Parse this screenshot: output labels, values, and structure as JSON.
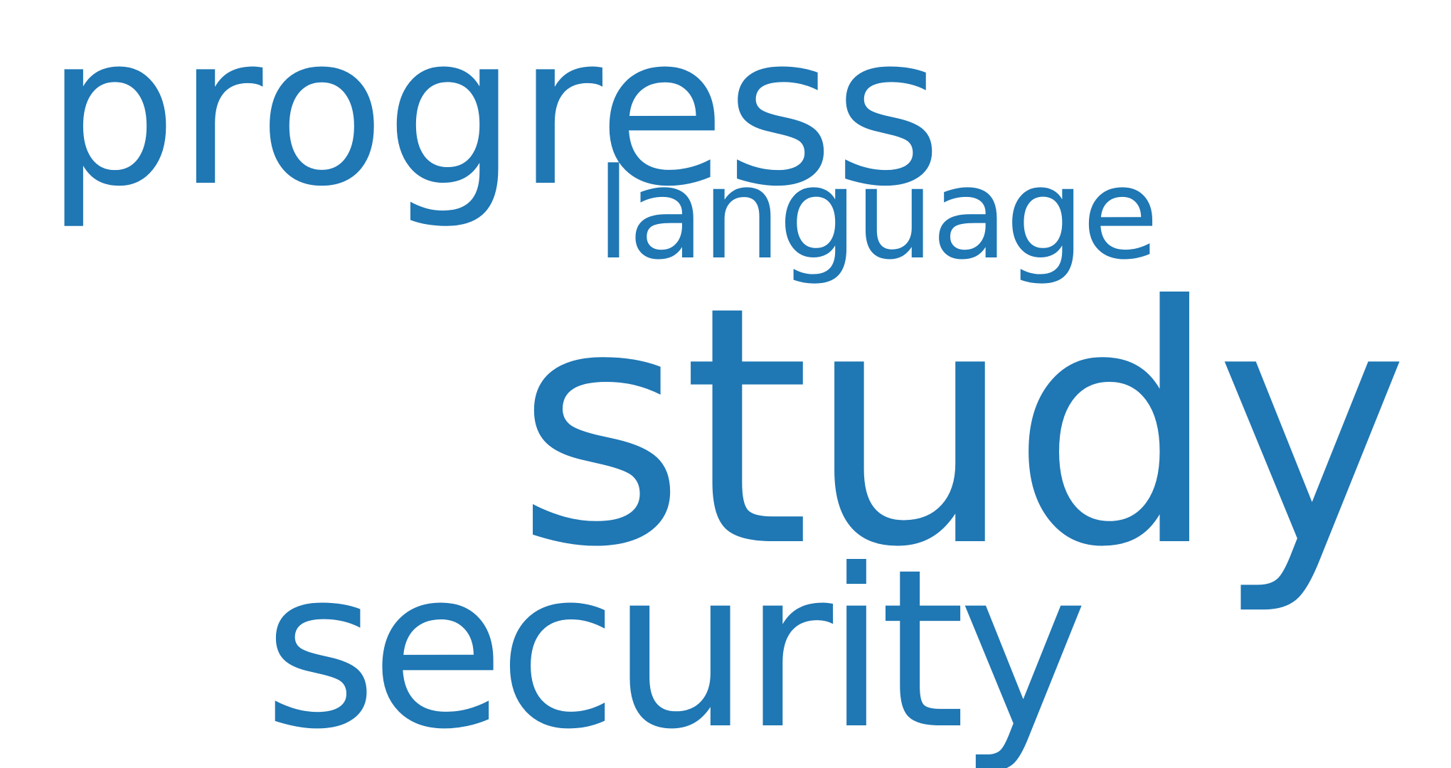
{
  "word_cloud": {
    "color": "#1f77b4",
    "background": "#ffffff",
    "words": [
      {
        "text": "progress"
      },
      {
        "text": "language"
      },
      {
        "text": "study"
      },
      {
        "text": "security"
      }
    ]
  }
}
